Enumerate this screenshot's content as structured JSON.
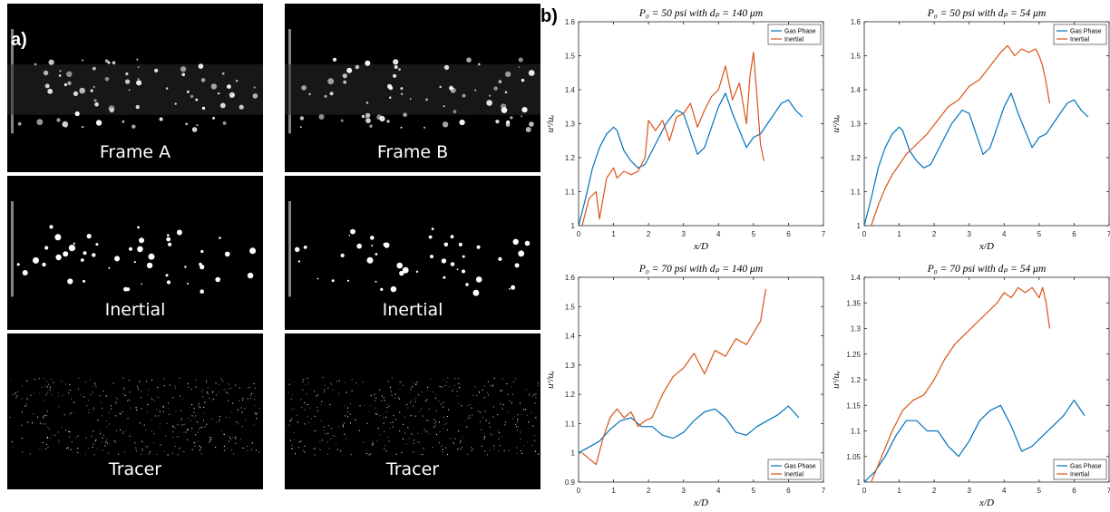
{
  "panel_letters": [
    "a)",
    "b)"
  ],
  "frames": [
    {
      "label": "Frame A",
      "kind": "raw"
    },
    {
      "label": "Frame B",
      "kind": "raw"
    },
    {
      "label": "Inertial",
      "kind": "binary"
    },
    {
      "label": "Inertial",
      "kind": "binary"
    },
    {
      "label": "Tracer",
      "kind": "tracer"
    },
    {
      "label": "Tracer",
      "kind": "tracer"
    }
  ],
  "colors": {
    "gas_phase": "#0072BD",
    "inertial": "#D95319",
    "frame_bg": "#000000",
    "particle": "#ffffff"
  },
  "chart_data": [
    {
      "type": "line",
      "title": "P₀ = 50 psi with dₚ = 140 μm",
      "xlabel": "x/D",
      "ylabel": "uᶜ/uₑ",
      "xlim": [
        0,
        7
      ],
      "ylim": [
        1,
        1.6
      ],
      "xticks": [
        "0",
        "1",
        "2",
        "3",
        "4",
        "5",
        "6",
        "7"
      ],
      "yticks": [
        "1",
        "1.1",
        "1.2",
        "1.3",
        "1.4",
        "1.5",
        "1.6"
      ],
      "legend_position": "top-right",
      "series": [
        {
          "name": "Gas Phase",
          "color_key": "gas_phase",
          "x": [
            0,
            0.2,
            0.4,
            0.6,
            0.8,
            1.0,
            1.1,
            1.3,
            1.5,
            1.7,
            1.9,
            2.1,
            2.3,
            2.5,
            2.8,
            3.0,
            3.2,
            3.4,
            3.6,
            3.8,
            4.0,
            4.2,
            4.4,
            4.6,
            4.8,
            5.0,
            5.2,
            5.4,
            5.6,
            5.8,
            6.0,
            6.2,
            6.4
          ],
          "y": [
            1.0,
            1.08,
            1.17,
            1.23,
            1.27,
            1.29,
            1.28,
            1.22,
            1.19,
            1.17,
            1.18,
            1.22,
            1.26,
            1.3,
            1.34,
            1.33,
            1.27,
            1.21,
            1.23,
            1.29,
            1.35,
            1.39,
            1.33,
            1.28,
            1.23,
            1.26,
            1.27,
            1.3,
            1.33,
            1.36,
            1.37,
            1.34,
            1.32
          ]
        },
        {
          "name": "Inertial",
          "color_key": "inertial",
          "x": [
            0.1,
            0.3,
            0.5,
            0.6,
            0.8,
            1.0,
            1.1,
            1.3,
            1.5,
            1.7,
            1.9,
            2.0,
            2.2,
            2.4,
            2.6,
            2.8,
            3.0,
            3.2,
            3.4,
            3.6,
            3.8,
            4.0,
            4.2,
            4.4,
            4.6,
            4.8,
            4.9,
            5.0,
            5.1,
            5.2,
            5.3
          ],
          "y": [
            1.0,
            1.08,
            1.1,
            1.02,
            1.14,
            1.17,
            1.14,
            1.16,
            1.15,
            1.16,
            1.2,
            1.31,
            1.28,
            1.31,
            1.25,
            1.32,
            1.33,
            1.36,
            1.29,
            1.34,
            1.38,
            1.4,
            1.47,
            1.37,
            1.42,
            1.3,
            1.44,
            1.51,
            1.38,
            1.24,
            1.19
          ]
        }
      ]
    },
    {
      "type": "line",
      "title": "P₀ = 50 psi with dₚ = 54 μm",
      "xlabel": "x/D",
      "ylabel": "uᶜ/uₑ",
      "xlim": [
        0,
        7
      ],
      "ylim": [
        1,
        1.6
      ],
      "xticks": [
        "0",
        "1",
        "2",
        "3",
        "4",
        "5",
        "6",
        "7"
      ],
      "yticks": [
        "1",
        "1.1",
        "1.2",
        "1.3",
        "1.4",
        "1.5",
        "1.6"
      ],
      "legend_position": "top-right",
      "series": [
        {
          "name": "Gas Phase",
          "color_key": "gas_phase",
          "x": [
            0,
            0.2,
            0.4,
            0.6,
            0.8,
            1.0,
            1.1,
            1.3,
            1.5,
            1.7,
            1.9,
            2.1,
            2.3,
            2.5,
            2.8,
            3.0,
            3.2,
            3.4,
            3.6,
            3.8,
            4.0,
            4.2,
            4.4,
            4.6,
            4.8,
            5.0,
            5.2,
            5.4,
            5.6,
            5.8,
            6.0,
            6.2,
            6.4
          ],
          "y": [
            1.0,
            1.08,
            1.17,
            1.23,
            1.27,
            1.29,
            1.28,
            1.22,
            1.19,
            1.17,
            1.18,
            1.22,
            1.26,
            1.3,
            1.34,
            1.33,
            1.27,
            1.21,
            1.23,
            1.29,
            1.35,
            1.39,
            1.33,
            1.28,
            1.23,
            1.26,
            1.27,
            1.3,
            1.33,
            1.36,
            1.37,
            1.34,
            1.32
          ]
        },
        {
          "name": "Inertial",
          "color_key": "inertial",
          "x": [
            0.2,
            0.4,
            0.6,
            0.8,
            1.0,
            1.2,
            1.5,
            1.8,
            2.1,
            2.4,
            2.7,
            3.0,
            3.3,
            3.6,
            3.9,
            4.1,
            4.3,
            4.5,
            4.7,
            4.9,
            5.0,
            5.1,
            5.2,
            5.3
          ],
          "y": [
            1.0,
            1.06,
            1.11,
            1.15,
            1.18,
            1.21,
            1.24,
            1.27,
            1.31,
            1.35,
            1.37,
            1.41,
            1.43,
            1.47,
            1.51,
            1.53,
            1.5,
            1.52,
            1.51,
            1.52,
            1.5,
            1.47,
            1.42,
            1.36
          ]
        }
      ]
    },
    {
      "type": "line",
      "title": "P₀ = 70 psi with dₚ = 140 μm",
      "xlabel": "x/D",
      "ylabel": "uᶜ/uₑ",
      "xlim": [
        0,
        7
      ],
      "ylim": [
        0.9,
        1.6
      ],
      "xticks": [
        "0",
        "1",
        "2",
        "3",
        "4",
        "5",
        "6",
        "7"
      ],
      "yticks": [
        "0.9",
        "1",
        "1.1",
        "1.2",
        "1.3",
        "1.4",
        "1.5",
        "1.6"
      ],
      "legend_position": "bottom-right",
      "series": [
        {
          "name": "Gas Phase",
          "color_key": "gas_phase",
          "x": [
            0,
            0.3,
            0.6,
            0.9,
            1.2,
            1.5,
            1.8,
            2.1,
            2.4,
            2.7,
            3.0,
            3.3,
            3.6,
            3.9,
            4.2,
            4.5,
            4.8,
            5.1,
            5.4,
            5.7,
            6.0,
            6.3
          ],
          "y": [
            1.0,
            1.02,
            1.04,
            1.08,
            1.11,
            1.12,
            1.09,
            1.09,
            1.06,
            1.05,
            1.07,
            1.11,
            1.14,
            1.15,
            1.12,
            1.07,
            1.06,
            1.09,
            1.11,
            1.13,
            1.16,
            1.12
          ]
        },
        {
          "name": "Inertial",
          "color_key": "inertial",
          "x": [
            0.1,
            0.3,
            0.5,
            0.7,
            0.9,
            1.1,
            1.3,
            1.5,
            1.7,
            1.9,
            2.1,
            2.4,
            2.7,
            3.0,
            3.3,
            3.6,
            3.9,
            4.2,
            4.5,
            4.8,
            5.0,
            5.2,
            5.35
          ],
          "y": [
            1.0,
            0.98,
            0.96,
            1.05,
            1.12,
            1.15,
            1.12,
            1.14,
            1.09,
            1.11,
            1.12,
            1.2,
            1.26,
            1.29,
            1.34,
            1.27,
            1.35,
            1.33,
            1.39,
            1.37,
            1.41,
            1.45,
            1.56
          ]
        }
      ]
    },
    {
      "type": "line",
      "title": "P₀ = 70 psi with dₚ = 54 μm",
      "xlabel": "x/D",
      "ylabel": "uᶜ/uₑ",
      "xlim": [
        0,
        7
      ],
      "ylim": [
        1,
        1.4
      ],
      "xticks": [
        "0",
        "1",
        "2",
        "3",
        "4",
        "5",
        "6",
        "7"
      ],
      "yticks": [
        "1",
        "1.05",
        "1.1",
        "1.15",
        "1.2",
        "1.25",
        "1.3",
        "1.35",
        "1.4"
      ],
      "legend_position": "bottom-right",
      "series": [
        {
          "name": "Gas Phase",
          "color_key": "gas_phase",
          "x": [
            0,
            0.3,
            0.6,
            0.9,
            1.2,
            1.5,
            1.8,
            2.1,
            2.4,
            2.7,
            3.0,
            3.3,
            3.6,
            3.9,
            4.2,
            4.5,
            4.8,
            5.1,
            5.4,
            5.7,
            6.0,
            6.3
          ],
          "y": [
            1.0,
            1.02,
            1.05,
            1.09,
            1.12,
            1.12,
            1.1,
            1.1,
            1.07,
            1.05,
            1.08,
            1.12,
            1.14,
            1.15,
            1.11,
            1.06,
            1.07,
            1.09,
            1.11,
            1.13,
            1.16,
            1.13
          ]
        },
        {
          "name": "Inertial",
          "color_key": "inertial",
          "x": [
            0.2,
            0.5,
            0.8,
            1.1,
            1.4,
            1.7,
            2.0,
            2.3,
            2.6,
            2.9,
            3.2,
            3.5,
            3.8,
            4.0,
            4.2,
            4.4,
            4.6,
            4.8,
            5.0,
            5.1,
            5.2,
            5.3
          ],
          "y": [
            1.0,
            1.05,
            1.1,
            1.14,
            1.16,
            1.17,
            1.2,
            1.24,
            1.27,
            1.29,
            1.31,
            1.33,
            1.35,
            1.37,
            1.36,
            1.38,
            1.37,
            1.38,
            1.36,
            1.38,
            1.35,
            1.3
          ]
        }
      ]
    }
  ]
}
